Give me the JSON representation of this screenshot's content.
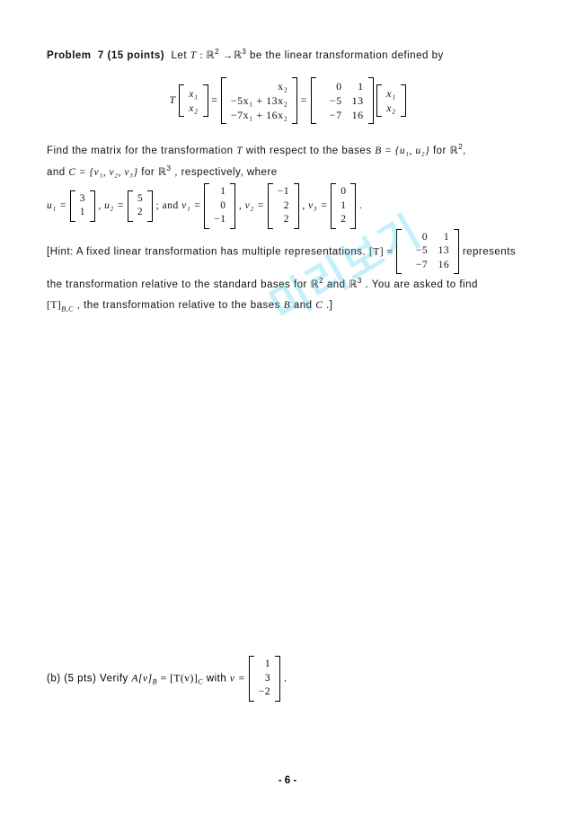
{
  "problem": {
    "heading_prefix": "Problem",
    "number_label": "7 (15 points)",
    "intro_text_1": "Let ",
    "T_symbol": "T",
    "domain_map": " : ℝ",
    "sup2": "2",
    "arrow": " →ℝ",
    "sup3": "3",
    "intro_text_2": " be the linear transformation defined by"
  },
  "equation": {
    "T": "T",
    "x1": "x₁",
    "x2": "x₂",
    "row1": "x₂",
    "row2": "−5x₁ + 13x₂",
    "row3": "−7x₁ + 16x₂",
    "m00": "0",
    "m01": "1",
    "m10": "−5",
    "m11": "13",
    "m20": "−7",
    "m21": "16"
  },
  "body": {
    "p1_a": "Find the matrix for the transformation ",
    "p1_b": " with respect to the bases ",
    "B_eq": "B = {u₁, u₂}",
    "for1": " for ",
    "R2": "ℝ",
    "comma": ",",
    "p2_a": "and ",
    "C_eq": "C = {v₁, v₂, v₃}",
    "for2": " for ",
    "R3": "ℝ",
    "p2_b": ", respectively, where",
    "u1_label": "u₁ =",
    "u1_top": "3",
    "u1_bot": "1",
    "u2_label": ", u₂ =",
    "u2_top": "5",
    "u2_bot": "2",
    "sep1": "; and ",
    "v1_label": "v₁ =",
    "v1_r1": "1",
    "v1_r2": "0",
    "v1_r3": "−1",
    "v2_label": ", v₂ =",
    "v2_r1": "−1",
    "v2_r2": "2",
    "v2_r3": "2",
    "v3_label": ", v₃ =",
    "v3_r1": "0",
    "v3_r2": "1",
    "v3_r3": "2",
    "period": ".",
    "hint_a": "[Hint: A fixed linear transformation has multiple representations. ",
    "T_br": "[T] =",
    "hm00": "0",
    "hm01": "1",
    "hm10": "−5",
    "hm11": "13",
    "hm20": "−7",
    "hm21": "16",
    "hint_b": " represents",
    "hint2_a": "the transformation relative to the standard bases for ",
    "hint2_b": " and ",
    "hint2_c": ". You are asked to find",
    "hint3_a": "[T]",
    "hint3_sub": "B,C",
    "hint3_b": " , the transformation relative to the bases ",
    "hint3_c": " and ",
    "hint3_end": ".]"
  },
  "partb": {
    "label": "(b) (5 pts) Verify ",
    "eqn": "A[v]",
    "sub1": "B",
    "mid": " = [T(v)]",
    "sub2": "C",
    "with": " with ",
    "v_eq": "v =",
    "r1": "1",
    "r2": "3",
    "r3": "−2",
    "end": "."
  },
  "watermark": "미리보기",
  "page_number": "- 6 -",
  "B_letter": "B",
  "C_letter": "C"
}
